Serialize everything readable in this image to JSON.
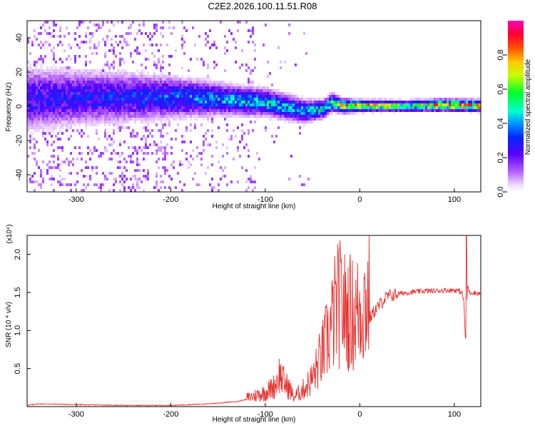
{
  "title": "C2E2.2026.100.11.51.R08",
  "colors": {
    "snr_line": "#e8312f",
    "frame": "#000000",
    "background": "#ffffff"
  },
  "chart_data": [
    {
      "type": "heatmap",
      "name": "spectrogram",
      "xlabel": "Height of straight line (km)",
      "ylabel": "Frequency (Hz)",
      "xlim": [
        -352,
        128
      ],
      "ylim": [
        -50,
        50
      ],
      "x_ticks": [
        -300,
        -200,
        -100,
        0,
        100
      ],
      "x_tick_labels": [
        "-300",
        "-200",
        "-100",
        "0",
        "100"
      ],
      "y_ticks": [
        -40,
        -20,
        0,
        20,
        40
      ],
      "y_tick_labels": [
        "-40",
        "-20",
        "0",
        "20",
        "40"
      ],
      "colorbar": {
        "label": "Normalized spectral amplitude",
        "range": [
          0,
          1
        ],
        "ticks": [
          0.0,
          0.2,
          0.4,
          0.6,
          0.8
        ],
        "tick_labels": [
          "0.0",
          "0.2",
          "0.4",
          "0.6",
          "0.8"
        ],
        "colormap": [
          "#ffffff",
          "#9900ff",
          "#3b00ff",
          "#00c8ff",
          "#00ff80",
          "#ffff00",
          "#ff8000",
          "#ff0000",
          "#ff00aa"
        ]
      },
      "ridge": [
        {
          "x": -352,
          "center": 5,
          "width": 14,
          "amplitude": 0.3
        },
        {
          "x": -300,
          "center": 6,
          "width": 12,
          "amplitude": 0.32
        },
        {
          "x": -250,
          "center": 6,
          "width": 11,
          "amplitude": 0.34
        },
        {
          "x": -200,
          "center": 6,
          "width": 9,
          "amplitude": 0.4
        },
        {
          "x": -150,
          "center": 5,
          "width": 7,
          "amplitude": 0.46
        },
        {
          "x": -100,
          "center": 3,
          "width": 6,
          "amplitude": 0.5
        },
        {
          "x": -60,
          "center": -2,
          "width": 5,
          "amplitude": 0.52
        },
        {
          "x": -40,
          "center": -1,
          "width": 4,
          "amplitude": 0.55
        },
        {
          "x": -30,
          "center": 3,
          "width": 4,
          "amplitude": 0.62
        },
        {
          "x": -20,
          "center": 1,
          "width": 3,
          "amplitude": 0.85
        },
        {
          "x": 0,
          "center": 1,
          "width": 2.5,
          "amplitude": 0.92
        },
        {
          "x": 50,
          "center": 1,
          "width": 2.5,
          "amplitude": 0.6
        },
        {
          "x": 90,
          "center": 1.5,
          "width": 2.5,
          "amplitude": 0.98
        },
        {
          "x": 128,
          "center": 1,
          "width": 2.5,
          "amplitude": 0.9
        }
      ]
    },
    {
      "type": "line",
      "name": "snr",
      "xlabel": "Height of straight line (km)",
      "ylabel": "SNR (10 * v/v)",
      "scale_label": "(x10⁴)",
      "xlim": [
        -352,
        128
      ],
      "ylim": [
        0,
        2.25
      ],
      "x_ticks": [
        -300,
        -200,
        -100,
        0,
        100
      ],
      "x_tick_labels": [
        "-300",
        "-200",
        "-100",
        "0",
        "100"
      ],
      "y_ticks": [
        0.5,
        1.0,
        1.5,
        2.0
      ],
      "y_tick_labels": [
        "0.5",
        "1.0",
        "1.5",
        "2.0"
      ],
      "series": [
        {
          "name": "SNR",
          "x": [
            -352,
            -340,
            -300,
            -250,
            -200,
            -160,
            -130,
            -110,
            -100,
            -90,
            -85,
            -80,
            -75,
            -70,
            -60,
            -50,
            -40,
            -30,
            -25,
            -20,
            -15,
            -10,
            -5,
            0,
            5,
            10,
            15,
            20,
            25,
            30,
            40,
            50,
            60,
            70,
            80,
            90,
            100,
            105,
            108,
            110,
            112,
            114,
            116,
            120,
            128
          ],
          "y": [
            0.01,
            0.03,
            0.02,
            0.01,
            0.01,
            0.03,
            0.06,
            0.12,
            0.15,
            0.22,
            0.35,
            0.25,
            0.2,
            0.1,
            0.18,
            0.3,
            0.55,
            0.85,
            1.05,
            1.1,
            1.0,
            1.0,
            0.95,
            1.05,
            1.1,
            1.15,
            1.25,
            1.32,
            1.4,
            1.45,
            1.48,
            1.5,
            1.51,
            1.52,
            1.52,
            1.53,
            1.53,
            1.52,
            1.5,
            1.4,
            0.8,
            1.6,
            1.5,
            1.5,
            1.48
          ],
          "max_peak": {
            "x": 113,
            "y": 2.25
          }
        }
      ]
    }
  ]
}
